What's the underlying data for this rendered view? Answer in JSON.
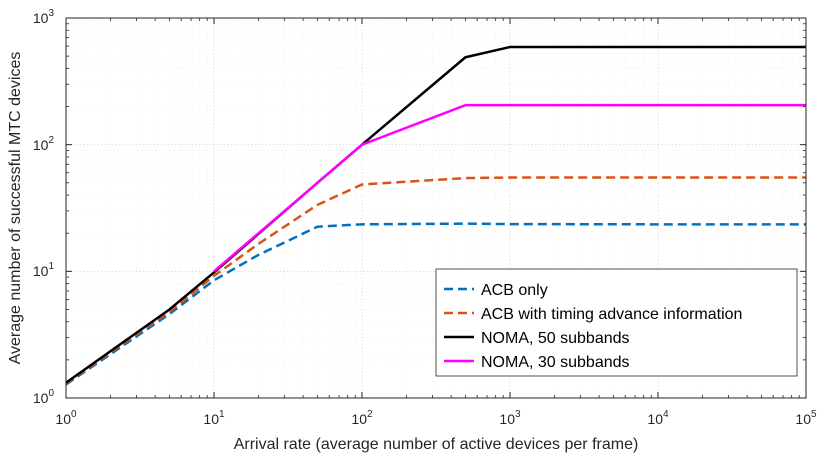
{
  "chart_data": {
    "type": "line",
    "xscale": "log",
    "yscale": "log",
    "xlim": [
      1,
      100000
    ],
    "ylim": [
      1,
      1000
    ],
    "grid": true,
    "minor_grid": true,
    "legend_location": "bottom-right",
    "xlabel": "Arrival rate (average number of active devices per frame)",
    "ylabel": "Average number of successful MTC devices",
    "x_ticks": [
      {
        "base": "10",
        "exp": "0",
        "value": 1
      },
      {
        "base": "10",
        "exp": "1",
        "value": 10
      },
      {
        "base": "10",
        "exp": "2",
        "value": 100
      },
      {
        "base": "10",
        "exp": "3",
        "value": 1000
      },
      {
        "base": "10",
        "exp": "4",
        "value": 10000
      },
      {
        "base": "10",
        "exp": "5",
        "value": 100000
      }
    ],
    "y_ticks": [
      {
        "base": "10",
        "exp": "0",
        "value": 1
      },
      {
        "base": "10",
        "exp": "1",
        "value": 10
      },
      {
        "base": "10",
        "exp": "2",
        "value": 100
      },
      {
        "base": "10",
        "exp": "3",
        "value": 1000
      }
    ],
    "series": [
      {
        "name": "ACB only",
        "color": "#0072BD",
        "dash": "dashed",
        "x": [
          1,
          5,
          10,
          20,
          50,
          100,
          500,
          1000,
          10000,
          100000
        ],
        "y": [
          1.28,
          4.6,
          8.5,
          13.5,
          22.5,
          23.5,
          23.8,
          23.6,
          23.5,
          23.5
        ]
      },
      {
        "name": "ACB with timing advance information",
        "color": "#D95319",
        "dash": "dashed",
        "x": [
          1,
          5,
          10,
          20,
          50,
          100,
          500,
          1000,
          10000,
          100000
        ],
        "y": [
          1.3,
          4.8,
          9.2,
          16.5,
          33.5,
          48.5,
          54.5,
          55,
          55,
          55
        ]
      },
      {
        "name": "NOMA, 50 subbands",
        "color": "#000000",
        "dash": "solid",
        "x": [
          1,
          5,
          10,
          50,
          100,
          500,
          1000,
          10000,
          100000
        ],
        "y": [
          1.32,
          5.0,
          9.8,
          50,
          100,
          490,
          590,
          590,
          590
        ]
      },
      {
        "name": "NOMA, 30 subbands",
        "color": "#FF00FF",
        "dash": "solid",
        "x": [
          10,
          50,
          100,
          500,
          1000,
          10000,
          100000
        ],
        "y": [
          10,
          50,
          100,
          205,
          205,
          205,
          205
        ]
      }
    ]
  }
}
